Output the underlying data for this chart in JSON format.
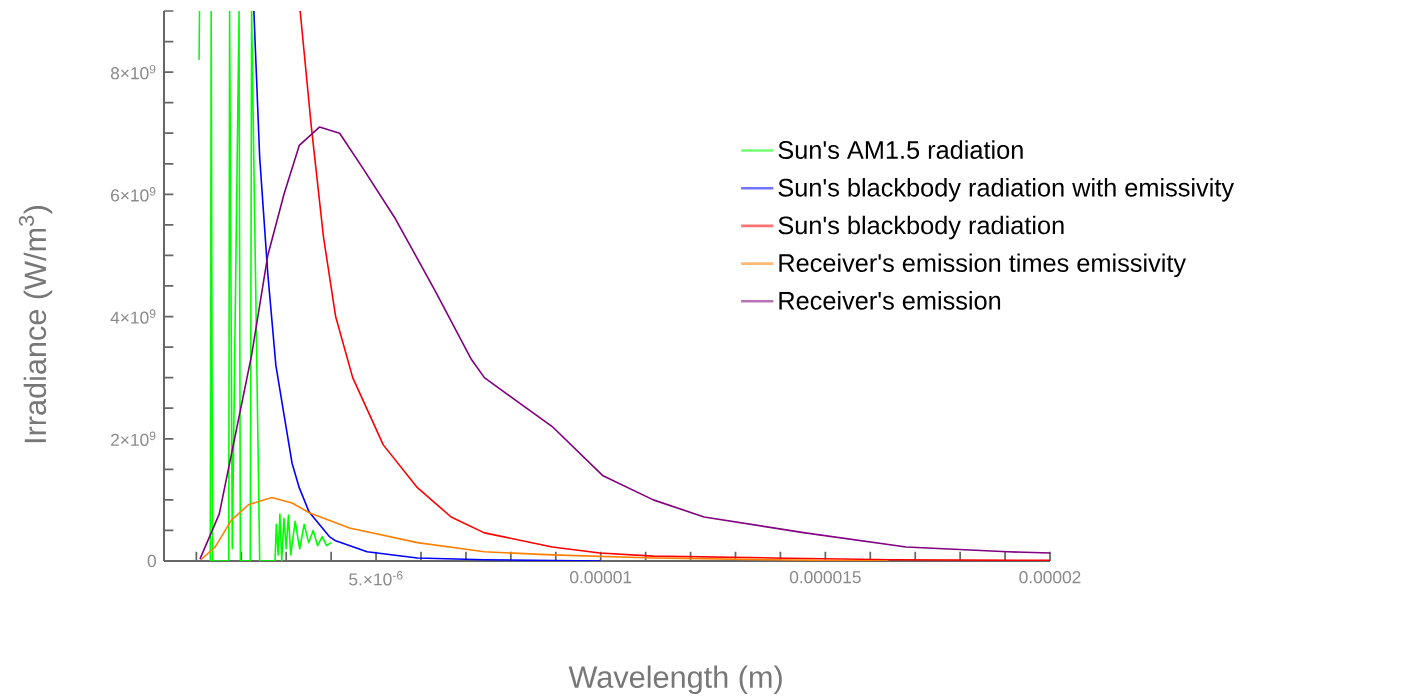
{
  "chart_data": {
    "type": "line",
    "xlabel": "Wavelength (m)",
    "ylabel": "Irradiance (W/m$^{3}$)",
    "xlim": [
      2.8e-07,
      2e-05
    ],
    "ylim": [
      0,
      9000000000.0
    ],
    "xticks": [
      {
        "value": 1e-06,
        "label": null
      },
      {
        "value": 2e-06,
        "label": null
      },
      {
        "value": 3e-06,
        "label": null
      },
      {
        "value": 4e-06,
        "label": null
      },
      {
        "value": 5e-06,
        "label": "5.×10$^{-6}$"
      },
      {
        "value": 6e-06,
        "label": null
      },
      {
        "value": 7e-06,
        "label": null
      },
      {
        "value": 8e-06,
        "label": null
      },
      {
        "value": 9e-06,
        "label": null
      },
      {
        "value": 1e-05,
        "label": "0.00001"
      },
      {
        "value": 1.1e-05,
        "label": null
      },
      {
        "value": 1.2e-05,
        "label": null
      },
      {
        "value": 1.3e-05,
        "label": null
      },
      {
        "value": 1.4e-05,
        "label": null
      },
      {
        "value": 1.5e-05,
        "label": "0.000015"
      },
      {
        "value": 1.6e-05,
        "label": null
      },
      {
        "value": 1.7e-05,
        "label": null
      },
      {
        "value": 1.8e-05,
        "label": null
      },
      {
        "value": 1.9e-05,
        "label": null
      },
      {
        "value": 2e-05,
        "label": "0.00002"
      }
    ],
    "yticks": [
      {
        "value": 0,
        "label": "0"
      },
      {
        "value": 500000000.0,
        "label": null
      },
      {
        "value": 1000000000.0,
        "label": null
      },
      {
        "value": 1500000000.0,
        "label": null
      },
      {
        "value": 2000000000.0,
        "label": "2×10$^{9}$"
      },
      {
        "value": 2500000000.0,
        "label": null
      },
      {
        "value": 3000000000.0,
        "label": null
      },
      {
        "value": 3500000000.0,
        "label": null
      },
      {
        "value": 4000000000.0,
        "label": "4×10$^{9}$"
      },
      {
        "value": 4500000000.0,
        "label": null
      },
      {
        "value": 5000000000.0,
        "label": null
      },
      {
        "value": 5500000000.0,
        "label": null
      },
      {
        "value": 6000000000.0,
        "label": "6×10$^{9}$"
      },
      {
        "value": 6500000000.0,
        "label": null
      },
      {
        "value": 7000000000.0,
        "label": null
      },
      {
        "value": 7500000000.0,
        "label": null
      },
      {
        "value": 8000000000.0,
        "label": "8×10$^{9}$"
      },
      {
        "value": 8500000000.0,
        "label": null
      },
      {
        "value": 9000000000.0,
        "label": null
      }
    ],
    "legend": "right",
    "series": [
      {
        "name": "Sun's AM1.5 radiation",
        "color": "#00ff00",
        "x": [
          1.06e-06,
          1.07e-06,
          1.2e-06,
          1.31e-06,
          1.33e-06,
          1.36e-06,
          1.72e-06,
          1.74e-06,
          1.8e-06,
          1.95e-06,
          1.98e-06,
          2.2e-06,
          2.23e-06,
          2.41e-06,
          2.75e-06,
          2.78e-06,
          2.82e-06,
          2.86e-06,
          2.9e-06,
          2.95e-06,
          3e-06,
          3.05e-06,
          3.1e-06,
          3.2e-06,
          3.3e-06,
          3.4e-06,
          3.5e-06,
          3.6e-06,
          3.7e-06,
          3.8e-06,
          3.9e-06,
          4e-06
        ],
        "values": [
          8200000000.0,
          9000000000.0,
          null,
          0,
          9000000000.0,
          0,
          0,
          9000000000.0,
          200000000.0,
          9000000000.0,
          0,
          0,
          9000000000.0,
          0,
          0,
          600000000.0,
          100000000.0,
          770000000.0,
          0,
          700000000.0,
          200000000.0,
          750000000.0,
          100000000.0,
          650000000.0,
          200000000.0,
          600000000.0,
          300000000.0,
          500000000.0,
          250000000.0,
          400000000.0,
          250000000.0,
          300000000.0
        ]
      },
      {
        "name": "Sun's blackbody radiation with emissivity",
        "color": "#0000ff",
        "x": [
          2.28e-06,
          2.41e-06,
          2.59e-06,
          2.77e-06,
          2.95e-06,
          3.13e-06,
          3.29e-06,
          3.51e-06,
          3.96e-06,
          4.1e-06,
          4.8e-06,
          5.92e-06,
          7.41e-06,
          1e-05
        ],
        "values": [
          9000000000.0,
          6600000000.0,
          4700000000.0,
          3200000000.0,
          2400000000.0,
          1600000000.0,
          1200000000.0,
          800000000.0,
          400000000.0,
          330000000.0,
          150000000.0,
          50000000.0,
          20000000.0,
          0
        ]
      },
      {
        "name": "Sun's blackbody radiation",
        "color": "#ff0000",
        "x": [
          3.31e-06,
          3.56e-06,
          3.83e-06,
          4.1e-06,
          4.48e-06,
          5.16e-06,
          5.92e-06,
          6.67e-06,
          7.41e-06,
          8.92e-06,
          9.98e-06,
          1.117e-05,
          1.38e-05,
          1.65e-05,
          2e-05
        ],
        "values": [
          9000000000.0,
          7100000000.0,
          5300000000.0,
          4000000000.0,
          3000000000.0,
          1900000000.0,
          1200000000.0,
          720000000.0,
          460000000.0,
          230000000.0,
          130000000.0,
          80000000.0,
          50000000.0,
          20000000.0,
          10000000.0
        ]
      },
      {
        "name": "Receiver's emission times emissivity",
        "color": "#ff8000",
        "x": [
          1.1e-06,
          1.42e-06,
          1.78e-06,
          2.16e-06,
          2.68e-06,
          3.13e-06,
          3.51e-06,
          4.41e-06,
          5.92e-06,
          7.41e-06,
          8.92e-06,
          1.117e-05,
          1.38e-05,
          1.64e-05
        ],
        "values": [
          20000000.0,
          230000000.0,
          670000000.0,
          920000000.0,
          1040000000.0,
          950000000.0,
          790000000.0,
          540000000.0,
          300000000.0,
          150000000.0,
          100000000.0,
          50000000.0,
          20000000.0,
          0
        ]
      },
      {
        "name": "Receiver's emission",
        "color": "#800080",
        "x": [
          1.08e-06,
          1.51e-06,
          1.87e-06,
          2.23e-06,
          2.59e-06,
          2.95e-06,
          3.29e-06,
          3.74e-06,
          4.19e-06,
          4.73e-06,
          5.43e-06,
          6.33e-06,
          7.12e-06,
          7.41e-06,
          8.92e-06,
          1.004e-05,
          1.117e-05,
          1.23e-05,
          1.455e-05,
          1.68e-05,
          1.905e-05,
          2e-05
        ],
        "values": [
          30000000.0,
          770000000.0,
          2070000000.0,
          3370000000.0,
          5000000000.0,
          6000000000.0,
          6800000000.0,
          7100000000.0,
          7000000000.0,
          6400000000.0,
          5600000000.0,
          4400000000.0,
          3300000000.0,
          3000000000.0,
          2200000000.0,
          1400000000.0,
          1000000000.0,
          720000000.0,
          460000000.0,
          230000000.0,
          150000000.0,
          130000000.0
        ]
      }
    ]
  }
}
